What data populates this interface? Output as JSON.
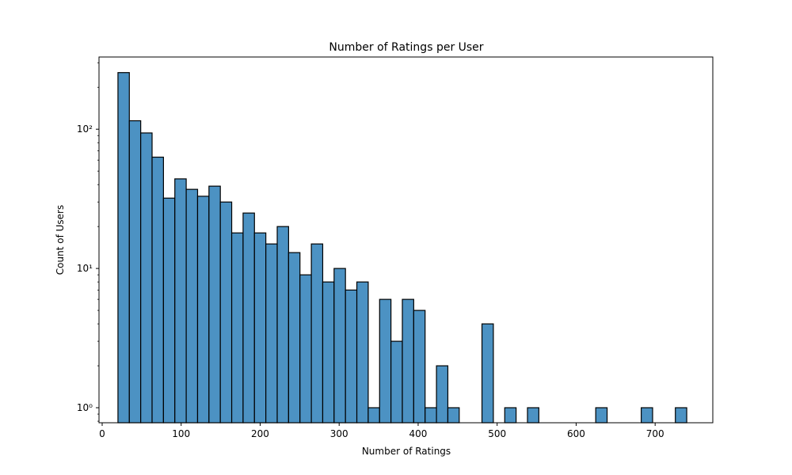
{
  "chart_data": {
    "type": "bar",
    "subtype": "histogram",
    "title": "Number of Ratings per User",
    "xlabel": "Number of Ratings",
    "ylabel": "Count of Users",
    "yscale": "log",
    "xlim": [
      -4,
      773
    ],
    "ylim": [
      0.78,
      330
    ],
    "xticks": [
      0,
      100,
      200,
      300,
      400,
      500,
      600,
      700
    ],
    "xtick_labels": [
      "0",
      "100",
      "200",
      "300",
      "400",
      "500",
      "600",
      "700"
    ],
    "yticks": [
      1,
      10,
      100
    ],
    "ytick_labels": [
      "10⁰",
      "10¹",
      "10²"
    ],
    "grid": false,
    "bar_color": "#4c92c3",
    "edge_color": "#000000",
    "bin_width": 14.4,
    "bins": [
      {
        "start": 20.0,
        "end": 34.4,
        "count": 255
      },
      {
        "start": 34.4,
        "end": 48.8,
        "count": 115
      },
      {
        "start": 48.8,
        "end": 63.2,
        "count": 94
      },
      {
        "start": 63.2,
        "end": 77.6,
        "count": 63
      },
      {
        "start": 77.6,
        "end": 92.0,
        "count": 32
      },
      {
        "start": 92.0,
        "end": 106.4,
        "count": 44
      },
      {
        "start": 106.4,
        "end": 120.8,
        "count": 37
      },
      {
        "start": 120.8,
        "end": 135.2,
        "count": 33
      },
      {
        "start": 135.2,
        "end": 149.6,
        "count": 39
      },
      {
        "start": 149.6,
        "end": 164.0,
        "count": 30
      },
      {
        "start": 164.0,
        "end": 178.4,
        "count": 18
      },
      {
        "start": 178.4,
        "end": 192.8,
        "count": 25
      },
      {
        "start": 192.8,
        "end": 207.2,
        "count": 18
      },
      {
        "start": 207.2,
        "end": 221.6,
        "count": 15
      },
      {
        "start": 221.6,
        "end": 236.0,
        "count": 20
      },
      {
        "start": 236.0,
        "end": 250.4,
        "count": 13
      },
      {
        "start": 250.4,
        "end": 264.8,
        "count": 9
      },
      {
        "start": 264.8,
        "end": 279.2,
        "count": 15
      },
      {
        "start": 279.2,
        "end": 293.6,
        "count": 8
      },
      {
        "start": 293.6,
        "end": 308.0,
        "count": 10
      },
      {
        "start": 308.0,
        "end": 322.4,
        "count": 7
      },
      {
        "start": 322.4,
        "end": 336.8,
        "count": 8
      },
      {
        "start": 336.8,
        "end": 351.2,
        "count": 1
      },
      {
        "start": 351.2,
        "end": 365.6,
        "count": 6
      },
      {
        "start": 365.6,
        "end": 380.0,
        "count": 3
      },
      {
        "start": 380.0,
        "end": 394.4,
        "count": 6
      },
      {
        "start": 394.4,
        "end": 408.8,
        "count": 5
      },
      {
        "start": 408.8,
        "end": 423.2,
        "count": 1
      },
      {
        "start": 423.2,
        "end": 437.6,
        "count": 2
      },
      {
        "start": 437.6,
        "end": 452.0,
        "count": 1
      },
      {
        "start": 480.8,
        "end": 495.2,
        "count": 4
      },
      {
        "start": 509.6,
        "end": 524.0,
        "count": 1
      },
      {
        "start": 538.4,
        "end": 552.8,
        "count": 1
      },
      {
        "start": 624.8,
        "end": 639.2,
        "count": 1
      },
      {
        "start": 682.4,
        "end": 696.8,
        "count": 1
      },
      {
        "start": 725.6,
        "end": 740.0,
        "count": 1
      }
    ]
  }
}
